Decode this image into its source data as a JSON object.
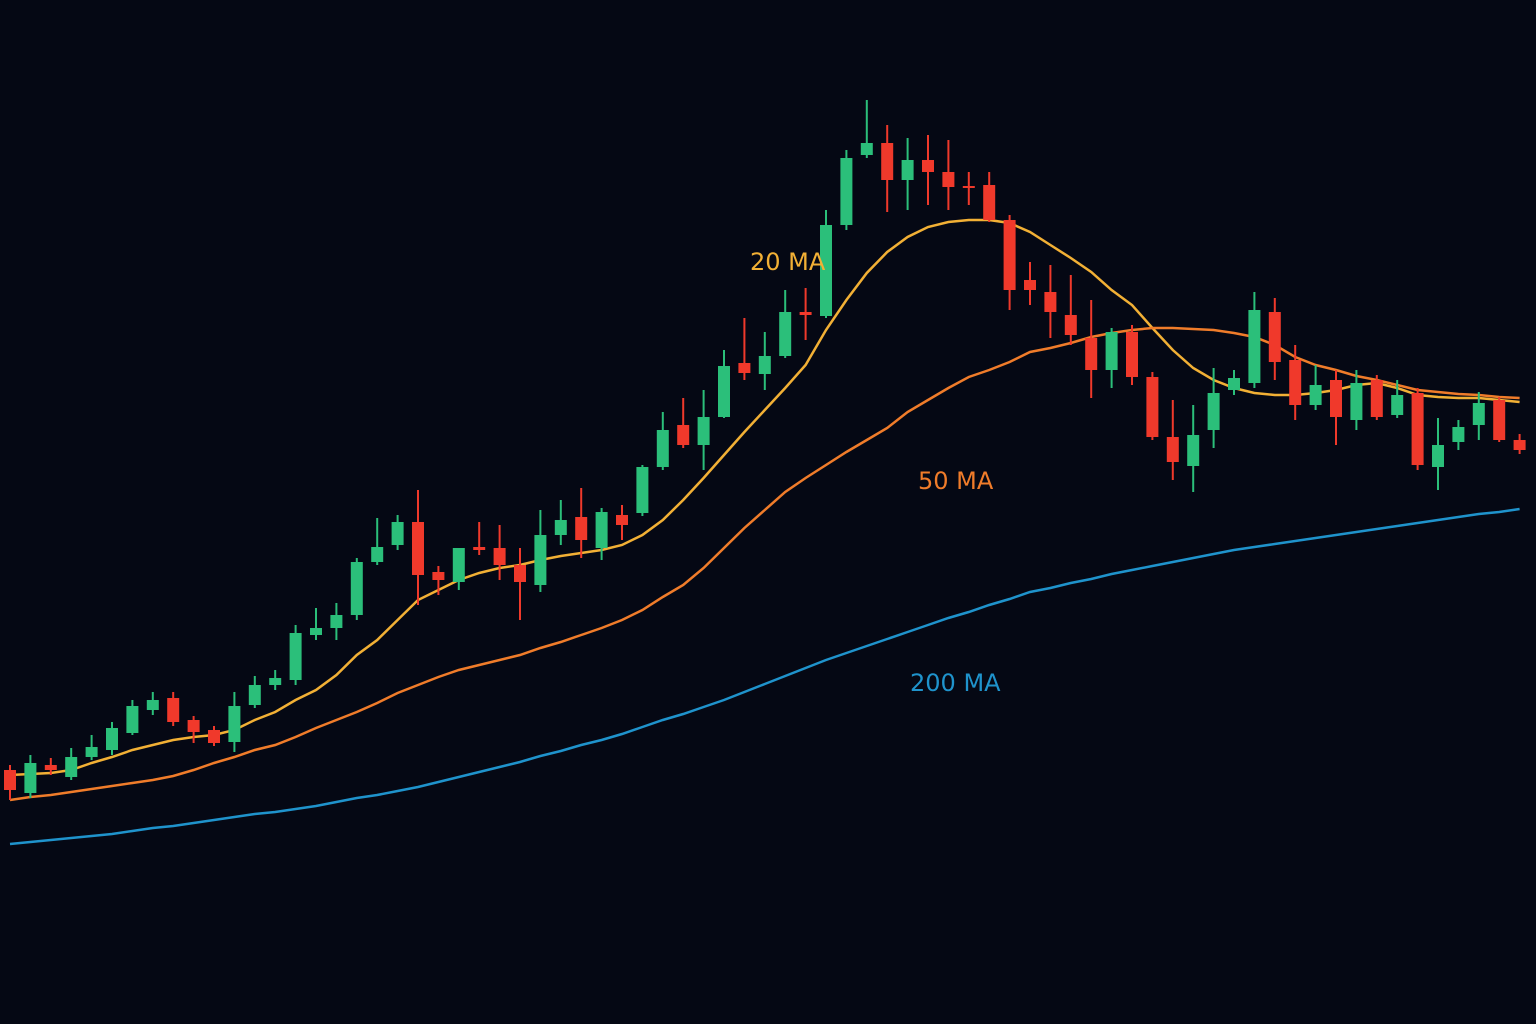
{
  "chart_data": {
    "type": "candlestick",
    "ylim": [
      0,
      1024
    ],
    "up_color": "#2bbf7a",
    "down_color": "#f0392b",
    "open": [
      254,
      231,
      259,
      247,
      267,
      274,
      291,
      314,
      326,
      304,
      294,
      282,
      319,
      339,
      344,
      389,
      396,
      409,
      462,
      479,
      502,
      452,
      442,
      477,
      476,
      459,
      439,
      489,
      507,
      476,
      509,
      511,
      557,
      599,
      579,
      607,
      661,
      650,
      668,
      712,
      708,
      799,
      869,
      881,
      844,
      864,
      852,
      838,
      839,
      804,
      744,
      732,
      709,
      686,
      654,
      692,
      647,
      587,
      558,
      594,
      634,
      641,
      712,
      664,
      619,
      644,
      604,
      644,
      609,
      631,
      557,
      582,
      599,
      624,
      584
    ],
    "high": [
      259,
      269,
      266,
      276,
      289,
      302,
      324,
      332,
      332,
      308,
      298,
      332,
      348,
      354,
      399,
      416,
      421,
      466,
      506,
      509,
      534,
      458,
      476,
      502,
      499,
      476,
      514,
      524,
      536,
      516,
      519,
      559,
      612,
      626,
      634,
      674,
      706,
      692,
      734,
      736,
      814,
      874,
      924,
      899,
      886,
      889,
      884,
      852,
      852,
      809,
      762,
      759,
      749,
      724,
      696,
      699,
      652,
      624,
      619,
      656,
      654,
      732,
      726,
      679,
      659,
      654,
      654,
      649,
      644,
      636,
      606,
      604,
      632,
      627,
      590
    ],
    "low": [
      224,
      226,
      249,
      244,
      264,
      269,
      289,
      309,
      298,
      281,
      278,
      272,
      316,
      334,
      339,
      384,
      384,
      404,
      459,
      474,
      419,
      429,
      434,
      469,
      444,
      404,
      432,
      479,
      466,
      464,
      484,
      508,
      554,
      576,
      554,
      606,
      644,
      634,
      666,
      684,
      706,
      794,
      866,
      812,
      814,
      819,
      814,
      819,
      802,
      714,
      719,
      686,
      679,
      626,
      636,
      639,
      584,
      544,
      532,
      576,
      629,
      636,
      644,
      604,
      614,
      579,
      594,
      604,
      606,
      554,
      534,
      574,
      584,
      582,
      570
    ],
    "close": [
      234,
      261,
      254,
      267,
      277,
      296,
      318,
      324,
      302,
      292,
      281,
      318,
      339,
      346,
      391,
      396,
      409,
      462,
      477,
      502,
      449,
      444,
      476,
      474,
      459,
      442,
      489,
      504,
      484,
      512,
      499,
      557,
      594,
      579,
      607,
      658,
      651,
      668,
      712,
      709,
      799,
      866,
      881,
      844,
      864,
      852,
      837,
      836,
      804,
      734,
      734,
      712,
      689,
      654,
      692,
      647,
      587,
      562,
      589,
      631,
      646,
      714,
      662,
      619,
      639,
      607,
      641,
      607,
      629,
      559,
      579,
      597,
      621,
      584,
      574
    ],
    "series": [
      {
        "name": "20 MA",
        "color": "#f2b035",
        "values": [
          249,
          250,
          251,
          254,
          261,
          267,
          274,
          279,
          284,
          287,
          289,
          294,
          304,
          312,
          324,
          334,
          349,
          369,
          384,
          404,
          424,
          434,
          444,
          451,
          456,
          459,
          464,
          468,
          471,
          474,
          479,
          489,
          504,
          524,
          546,
          569,
          592,
          614,
          636,
          659,
          694,
          724,
          751,
          772,
          787,
          797,
          802,
          804,
          804,
          801,
          792,
          779,
          766,
          752,
          734,
          719,
          696,
          674,
          656,
          644,
          636,
          631,
          629,
          629,
          631,
          634,
          639,
          641,
          636,
          629,
          627,
          626,
          626,
          624,
          622
        ]
      },
      {
        "name": "50 MA",
        "color": "#f07c2a",
        "values": [
          224,
          227,
          229,
          232,
          235,
          238,
          241,
          244,
          248,
          254,
          261,
          267,
          274,
          279,
          287,
          296,
          304,
          312,
          321,
          331,
          339,
          347,
          354,
          359,
          364,
          369,
          376,
          382,
          389,
          396,
          404,
          414,
          427,
          439,
          456,
          476,
          496,
          514,
          532,
          546,
          559,
          572,
          584,
          596,
          612,
          624,
          636,
          647,
          654,
          662,
          672,
          676,
          681,
          687,
          691,
          694,
          696,
          696,
          695,
          694,
          691,
          687,
          679,
          667,
          659,
          654,
          648,
          644,
          639,
          634,
          632,
          630,
          629,
          627,
          626
        ]
      },
      {
        "name": "200 MA",
        "color": "#1f93cc",
        "values": [
          180,
          182,
          184,
          186,
          188,
          190,
          193,
          196,
          198,
          201,
          204,
          207,
          210,
          212,
          215,
          218,
          222,
          226,
          229,
          233,
          237,
          242,
          247,
          252,
          257,
          262,
          268,
          273,
          279,
          284,
          290,
          297,
          304,
          310,
          317,
          324,
          332,
          340,
          348,
          356,
          364,
          371,
          378,
          385,
          392,
          399,
          406,
          412,
          419,
          425,
          432,
          436,
          441,
          445,
          450,
          454,
          458,
          462,
          466,
          470,
          474,
          477,
          480,
          483,
          486,
          489,
          492,
          495,
          498,
          501,
          504,
          507,
          510,
          512,
          515
        ]
      }
    ]
  }
}
